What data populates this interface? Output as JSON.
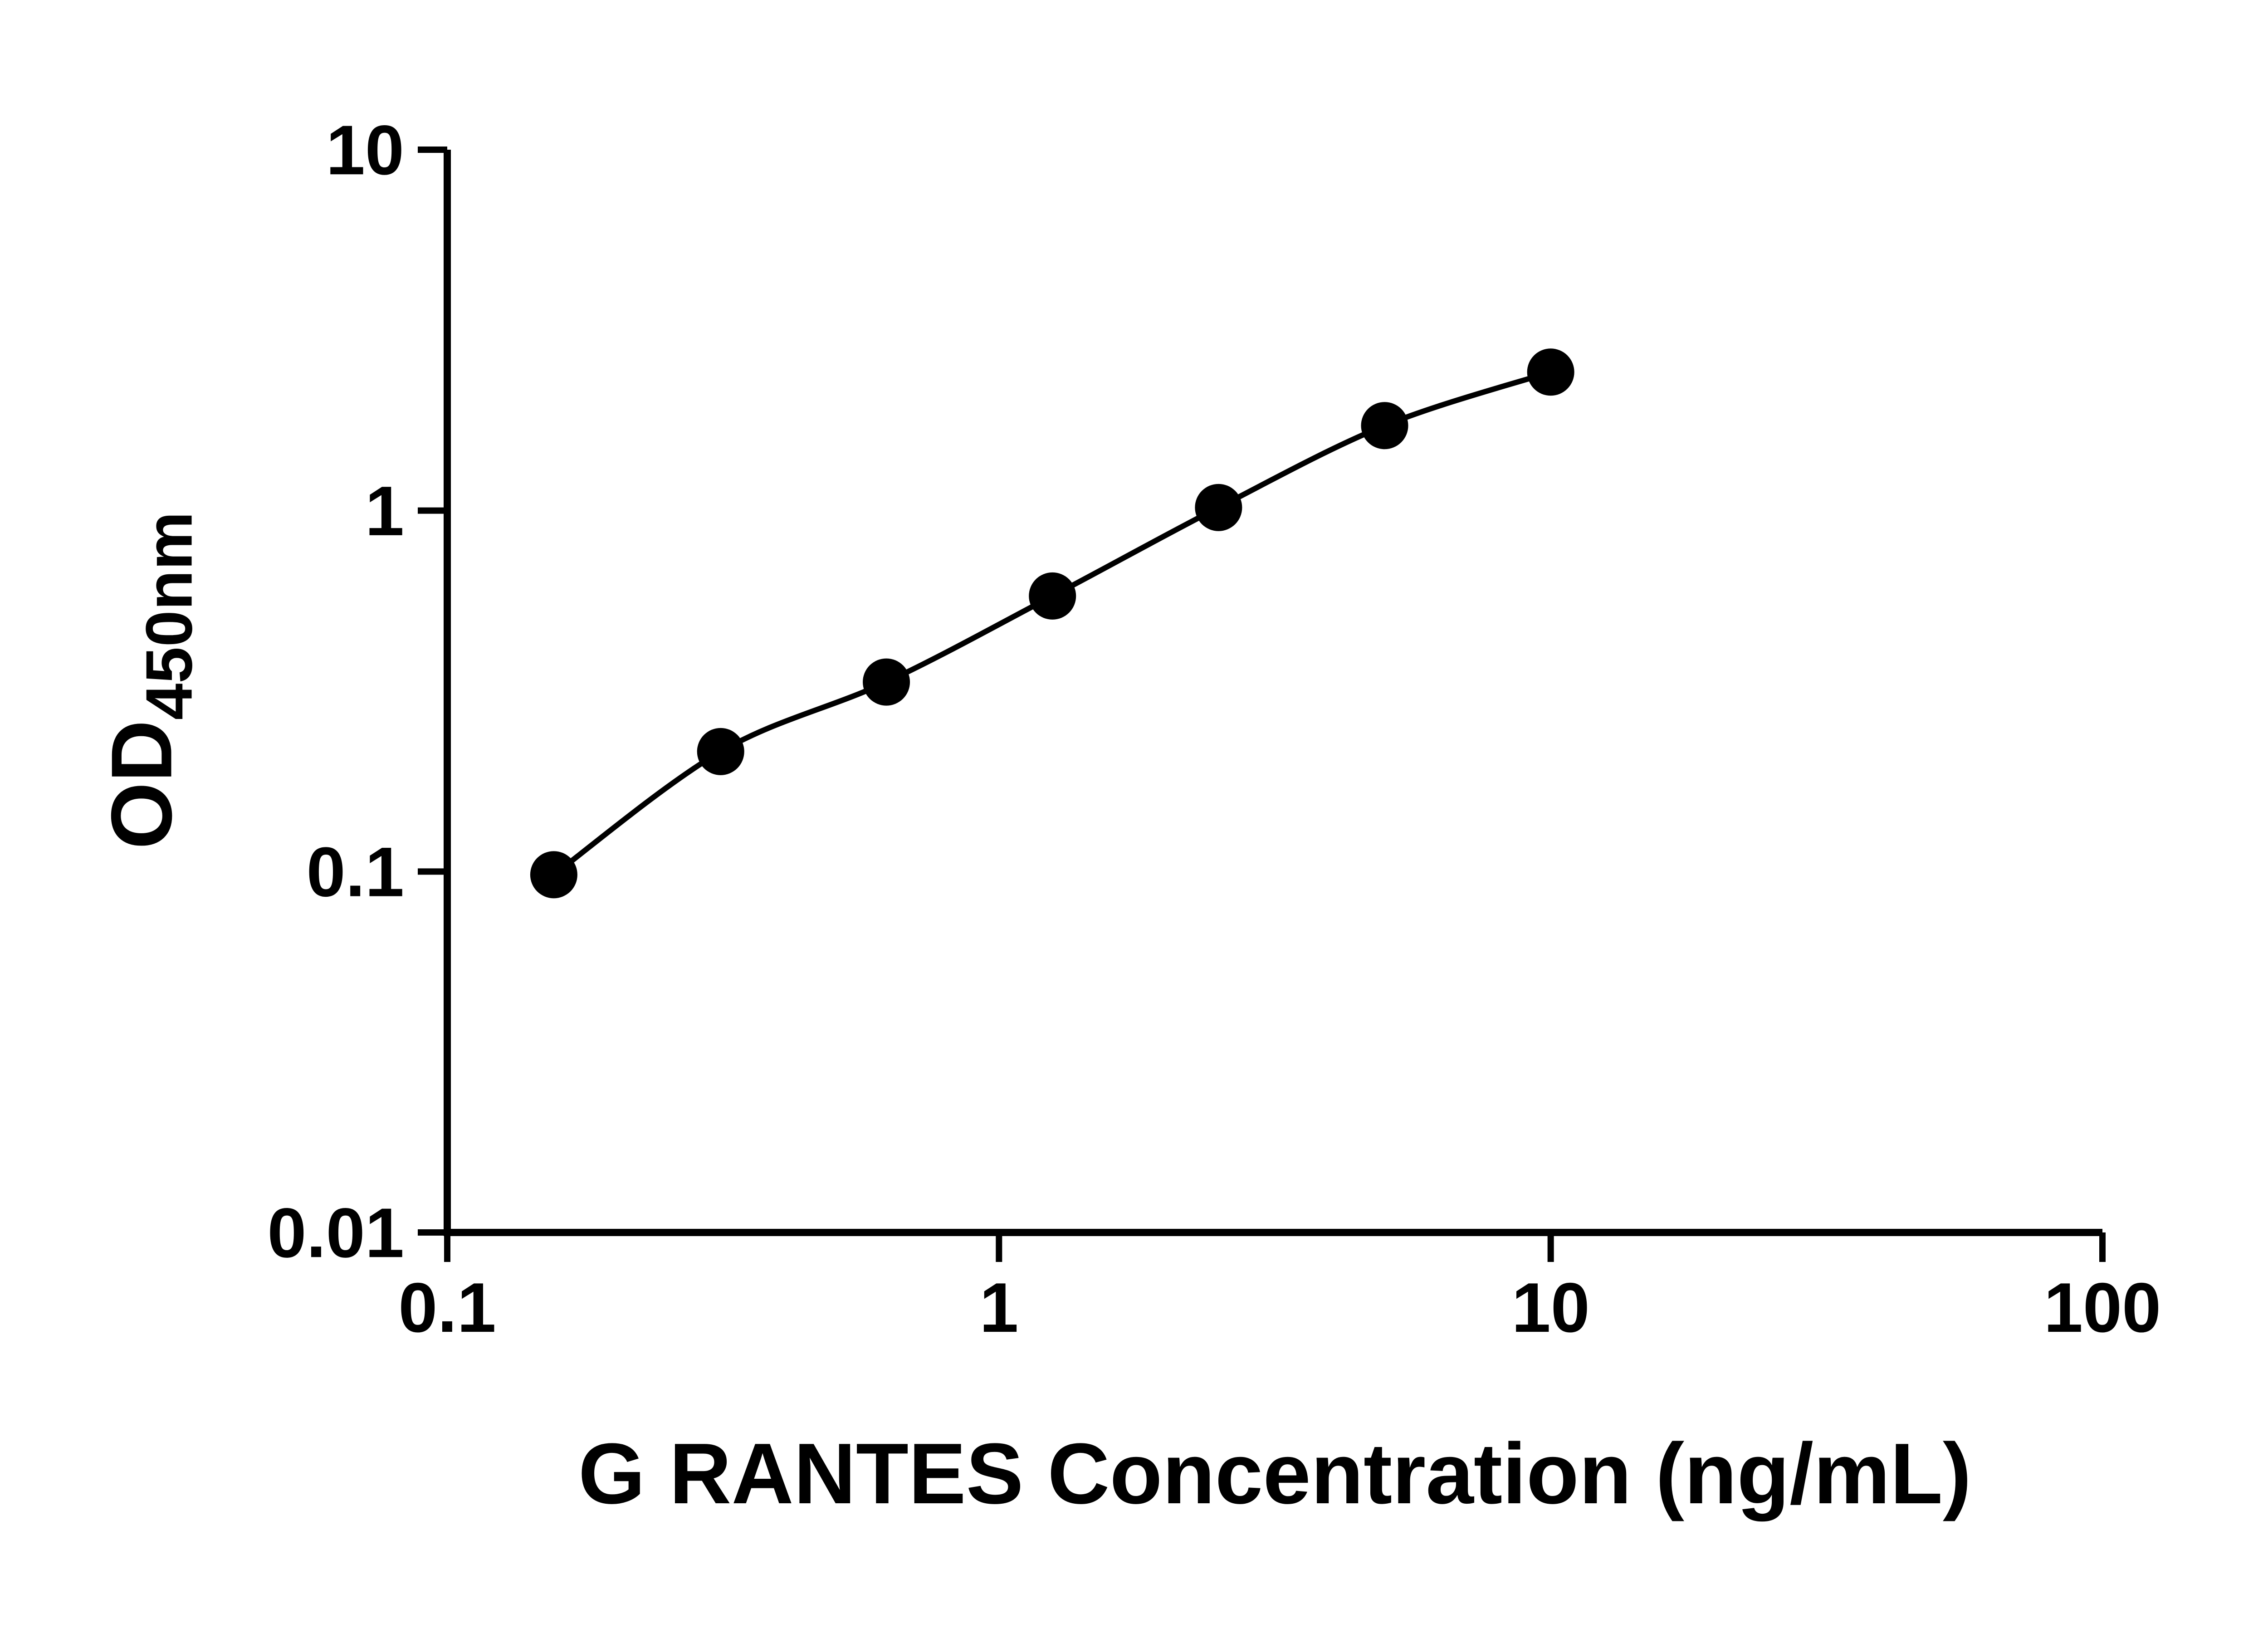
{
  "chart_data": {
    "type": "scatter",
    "title": "",
    "xlabel": "G RANTES Concentration (ng/mL)",
    "ylabel_main": "OD",
    "ylabel_sub": "450nm",
    "x_scale": "log",
    "y_scale": "log",
    "xlim": [
      0.1,
      100
    ],
    "ylim": [
      0.01,
      10
    ],
    "x": [
      0.156,
      0.313,
      0.625,
      1.25,
      2.5,
      5,
      10
    ],
    "y": [
      0.098,
      0.215,
      0.335,
      0.58,
      1.02,
      1.72,
      2.42
    ],
    "xticks": {
      "values": [
        0.1,
        1,
        10,
        100
      ],
      "labels": [
        "0.1",
        "1",
        "10",
        "100"
      ]
    },
    "yticks": {
      "values": [
        0.01,
        0.1,
        1,
        10
      ],
      "labels": [
        "0.01",
        "0.1",
        "1",
        "10"
      ]
    },
    "marker_color": "#000000",
    "line_color": "#000000",
    "axis_color": "#000000",
    "background_color": "#ffffff",
    "grid": false,
    "legend": null
  }
}
